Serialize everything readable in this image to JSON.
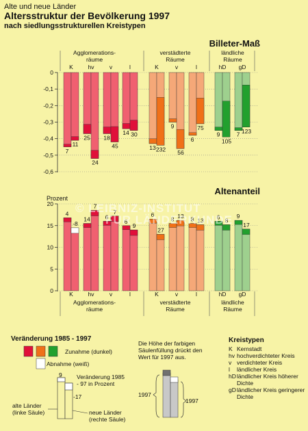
{
  "header": {
    "subtitle": "Alte und neue Länder",
    "title": "Altersstruktur der Bevölkerung 1997",
    "subtitle2": "nach siedlungsstrukturellen Kreistypen"
  },
  "watermark": [
    "© LEIBNIZ-INSTITUT",
    "FÜR LÄNDERKUNDE"
  ],
  "colors": {
    "agglo_dark": "#e0103a",
    "agglo_light": "#f06070",
    "verst_dark": "#f07018",
    "verst_light": "#f5a878",
    "laendl_dark": "#22a02e",
    "laendl_light": "#9ed08e",
    "white": "#ffffff",
    "gray_light": "#c8c8c8",
    "gray_dark": "#707070"
  },
  "group_labels": {
    "agglo": "Agglomerations- räume",
    "verst": "verstädterte Räume",
    "laendl": "ländliche Räume"
  },
  "type_codes": [
    "K",
    "hv",
    "v",
    "l",
    "K",
    "v",
    "l",
    "hD",
    "gD"
  ],
  "chart_data": [
    {
      "type": "bar",
      "title": "Billeter-Maß",
      "ylim": [
        -0.6,
        0
      ],
      "yticks": [
        "0",
        "-0,1",
        "-0,2",
        "-0,3",
        "-0,4",
        "-0,5",
        "-0,6"
      ],
      "categories": [
        "K",
        "hv",
        "v",
        "l",
        "K",
        "v",
        "l",
        "hD",
        "gD"
      ],
      "series": [
        {
          "name": "alte Länder (linke Säule)",
          "values": [
            -0.45,
            -0.37,
            -0.37,
            -0.34,
            -0.43,
            -0.3,
            -0.38,
            -0.35,
            -0.35
          ]
        },
        {
          "name": "neue Länder (rechte Säule)",
          "values": [
            -0.41,
            -0.52,
            -0.42,
            -0.35,
            -0.44,
            -0.46,
            -0.31,
            -0.39,
            -0.33
          ]
        }
      ],
      "change_1985_1997": [
        {
          "alt": 7,
          "neu": 11
        },
        {
          "alt": 25,
          "neu": 24
        },
        {
          "alt": 18,
          "neu": 45
        },
        {
          "alt": 14,
          "neu": 30
        },
        {
          "alt": 13,
          "neu": 232
        },
        {
          "alt": 9,
          "neu": 56
        },
        {
          "alt": 6,
          "neu": 75
        },
        {
          "alt": 9,
          "neu": 105
        },
        {
          "alt": 7,
          "neu": 123
        }
      ]
    },
    {
      "type": "bar",
      "title": "Altenanteil",
      "ylabel": "Prozent",
      "ylim": [
        0,
        20
      ],
      "yticks": [
        "20",
        "15",
        "10",
        "5",
        "0"
      ],
      "categories": [
        "K",
        "hv",
        "v",
        "l",
        "K",
        "v",
        "l",
        "hD",
        "gD"
      ],
      "series": [
        {
          "name": "alte Länder (linke Säule)",
          "values": [
            16.8,
            15.5,
            16.0,
            15.0,
            16.5,
            15.5,
            15.5,
            16.0,
            16.2
          ]
        },
        {
          "name": "neue Länder (rechte Säule)",
          "values": [
            14.5,
            18.5,
            17.2,
            14.0,
            13.0,
            16.2,
            15.2,
            15.2,
            14.2
          ]
        }
      ],
      "change_1985_1997": [
        {
          "alt": 4,
          "neu": -8
        },
        {
          "alt": 14,
          "neu": 7
        },
        {
          "alt": 6,
          "neu": 7
        },
        {
          "alt": 6,
          "neu": 9
        },
        {
          "alt": 6,
          "neu": 27
        },
        {
          "alt": 8,
          "neu": 13
        },
        {
          "alt": 8,
          "neu": 13
        },
        {
          "alt": 6,
          "neu": 8
        },
        {
          "alt": 9,
          "neu": 17
        }
      ]
    }
  ],
  "legend": {
    "change_title": "Veränderung 1985 - 1997",
    "zunahme": "Zunahme (dunkel)",
    "abnahme": "Abnahme (weiß)",
    "example_top": "9",
    "example_bottom": "-17",
    "example_note": "Veränderung 1985 - 97 in Prozent",
    "alte_laender": "alte Länder (linke Säule)",
    "neue_laender": "neue Länder (rechte Säule)",
    "fill_note": "Die Höhe der farbigen Säulenfüllung drückt den Wert für 1997 aus.",
    "year_left": "1997",
    "year_right": "1997",
    "kreistypen_title": "Kreistypen",
    "kreistypen": [
      {
        "code": "K",
        "text": "Kernstadt"
      },
      {
        "code": "hv",
        "text": "hochverdichteter Kreis"
      },
      {
        "code": "v",
        "text": "verdichteter Kreis"
      },
      {
        "code": "l",
        "text": "ländlicher Kreis"
      },
      {
        "code": "hD",
        "text": "ländlicher Kreis höherer Dichte"
      },
      {
        "code": "gD",
        "text": "ländlicher Kreis geringerer Dichte"
      }
    ]
  }
}
